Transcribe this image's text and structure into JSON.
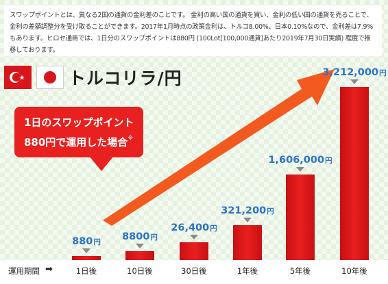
{
  "description": "スワップポイントとは、異なる2国の通貨の金利差のことです。 金利の高い国の通貨を買い、金利の低い国の通貨を売ることで、金利の差額調整分を受け取ることができます。2017年1月時点の政策金利は、トルコ8.00%、日本0.10%なので、金利差は7.9%もあります。ヒロセ通商では、1日分のスワップポイントは880円 (100Lot[100,000通貨]あたり2019年7月30日実績) 程度で推移しております。",
  "pair_label": "トルコリラ/円",
  "callout": {
    "line1": "1日のスワップポイント",
    "line2": "880円で運用した場合",
    "note": "※"
  },
  "footer": {
    "label": "運用期間"
  },
  "colors": {
    "bar": "#e8201f",
    "value_label": "#2b73c9",
    "arrow": "#f25a1f",
    "background": "#e6f2df"
  },
  "chart_data": {
    "type": "bar",
    "xlabel": "運用期間",
    "categories": [
      "1日後",
      "10日後",
      "30日後",
      "1年後",
      "5年後",
      "10年後"
    ],
    "values": [
      880,
      8800,
      26400,
      321200,
      1606000,
      3212000
    ],
    "value_labels": [
      {
        "number": "880",
        "unit": "円"
      },
      {
        "number": "8800",
        "unit": "円"
      },
      {
        "number": "26,400",
        "unit": "円"
      },
      {
        "number": "321,200",
        "unit": "円"
      },
      {
        "number": "1,606,000",
        "unit": "円"
      },
      {
        "number": "3,212,000",
        "unit": "円"
      }
    ],
    "grid": false,
    "legend": "none"
  }
}
